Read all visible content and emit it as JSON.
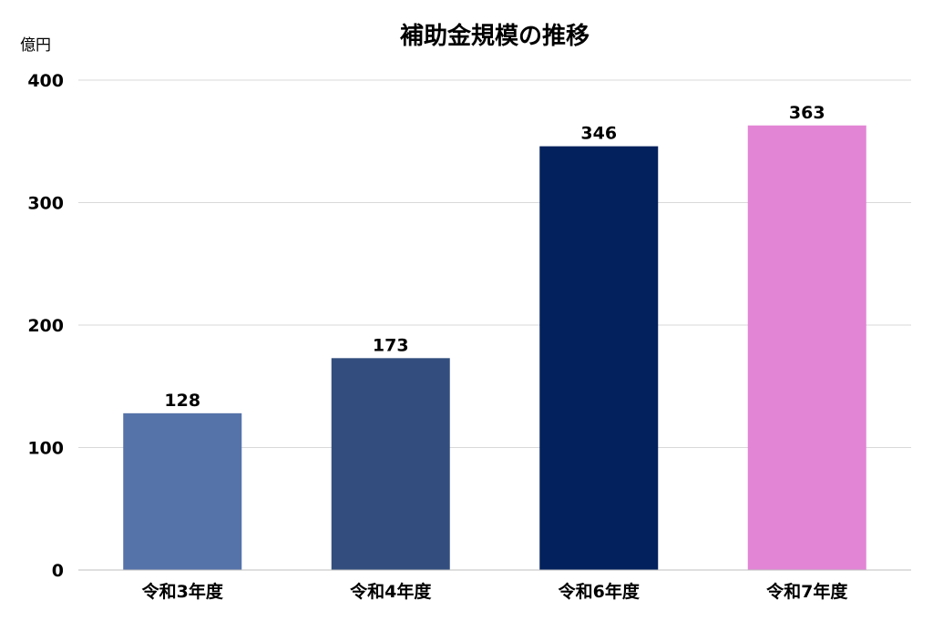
{
  "chart_data": {
    "type": "bar",
    "title": "補助金規模の推移",
    "ylabel": "億円",
    "xlabel": "",
    "categories": [
      "令和3年度",
      "令和4年度",
      "令和6年度",
      "令和7年度"
    ],
    "values": [
      128,
      173,
      346,
      363
    ],
    "data_labels": [
      "128",
      "173",
      "346",
      "363"
    ],
    "bar_colors": [
      "#5572a9",
      "#334e7e",
      "#03215c",
      "#e285d5"
    ],
    "ylim": [
      0,
      400
    ],
    "yticks": [
      0,
      100,
      200,
      300,
      400
    ],
    "ytick_labels": [
      "0",
      "100",
      "200",
      "300",
      "400"
    ],
    "grid": true,
    "legend": "none"
  }
}
